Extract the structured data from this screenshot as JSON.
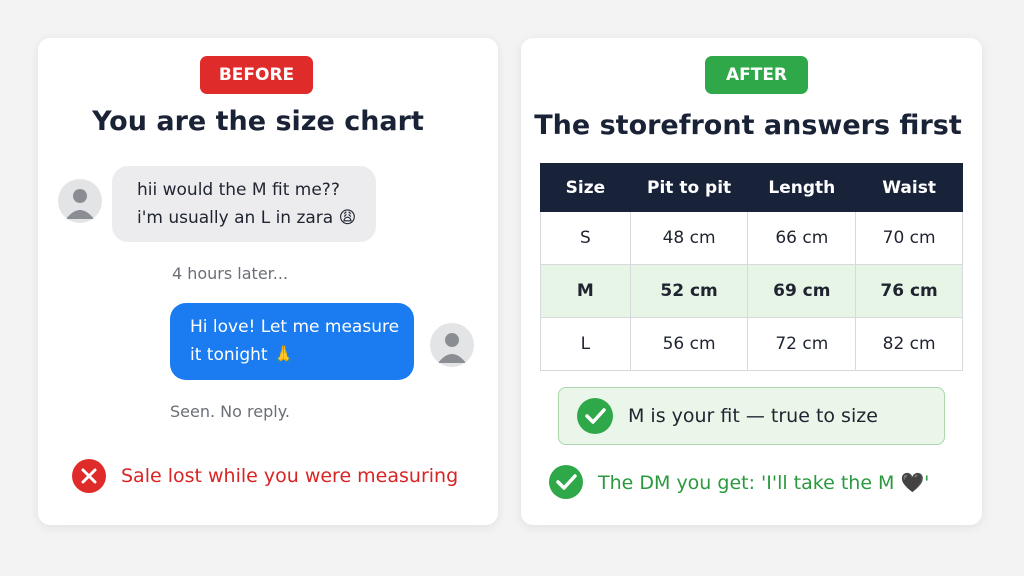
{
  "before": {
    "badge": "BEFORE",
    "title": "You are the size chart",
    "customer_message": [
      "hii would the M fit me??",
      "i'm usually an L in zara 😩"
    ],
    "delay": "4 hours later...",
    "seller_message": [
      "Hi love! Let me measure",
      "it tonight 🙏"
    ],
    "status": "Seen. No reply.",
    "outcome": "Sale lost while you were measuring"
  },
  "after": {
    "badge": "AFTER",
    "title": "The storefront answers first",
    "table": {
      "header": [
        "Size",
        "Pit to pit",
        "Length",
        "Waist"
      ],
      "rows": [
        [
          "S",
          "48 cm",
          "66 cm",
          "70 cm"
        ],
        [
          "M",
          "52 cm",
          "69 cm",
          "76 cm"
        ],
        [
          "L",
          "56 cm",
          "72 cm",
          "82 cm"
        ]
      ]
    },
    "fit_note": "M is your fit — true to size",
    "outcome": "The DM you get: 'I'll take the M 🖤'"
  }
}
